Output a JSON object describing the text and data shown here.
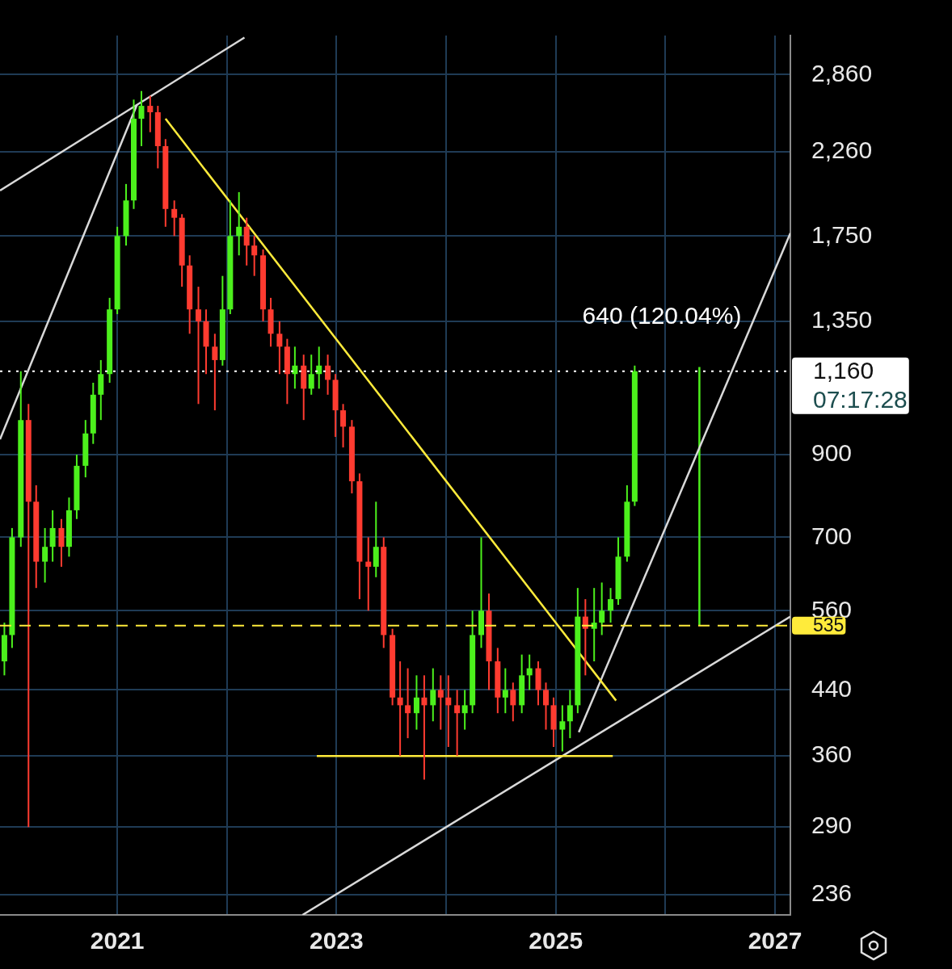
{
  "chart_data": {
    "type": "candlestick",
    "log": "y",
    "grid": true,
    "legend": false,
    "marker": "none",
    "xlim": [
      2019.93,
      2027.14
    ],
    "xticks": [
      2021,
      {
        "value": 2022,
        "label": null
      },
      2023,
      {
        "value": 2024,
        "label": null
      },
      2025,
      {
        "value": 2026,
        "label": null
      },
      2027
    ],
    "ylim": [
      222,
      3220
    ],
    "yticks": [
      {
        "value": 2860,
        "label": "2,860"
      },
      {
        "value": 2260,
        "label": "2,260"
      },
      {
        "value": 1750,
        "label": "1,750"
      },
      {
        "value": 1350,
        "label": "1,350"
      },
      900,
      700,
      560,
      440,
      360,
      290,
      236
    ],
    "ref_lines": [
      {
        "axis": "y",
        "value": 535,
        "label": "535",
        "color": "#ffeb3b",
        "line_style": "dashed"
      },
      {
        "axis": "y",
        "value": 1160,
        "label": "1,160",
        "color": "#ffffff",
        "line_style": "dotted"
      }
    ],
    "annotations": [
      "640 (120.04%)",
      "07:17:28"
    ],
    "series": [
      {
        "x": [
          2019.97,
          2020.04,
          2020.12,
          2020.19,
          2020.26,
          2020.34,
          2020.41,
          2020.49,
          2020.56,
          2020.63,
          2020.71,
          2020.78,
          2020.85,
          2020.93,
          2021.0,
          2021.08,
          2021.15,
          2021.22,
          2021.3,
          2021.37,
          2021.44,
          2021.52,
          2021.59,
          2021.66,
          2021.74,
          2021.81,
          2021.89,
          2021.96,
          2022.03,
          2022.11,
          2022.18,
          2022.25,
          2022.33,
          2022.4,
          2022.48,
          2022.55,
          2022.62,
          2022.7,
          2022.77,
          2022.84,
          2022.92,
          2022.99,
          2023.06,
          2023.14,
          2023.21,
          2023.29,
          2023.36,
          2023.43,
          2023.51,
          2023.58,
          2023.65,
          2023.73,
          2023.8,
          2023.88,
          2023.95,
          2024.02,
          2024.1,
          2024.17,
          2024.24,
          2024.32,
          2024.39,
          2024.47,
          2024.54,
          2024.61,
          2024.69,
          2024.76,
          2024.84,
          2024.91,
          2024.98,
          2025.06,
          2025.13,
          2025.2,
          2025.27,
          2025.35,
          2025.42,
          2025.5,
          2025.57,
          2025.65,
          2025.72
        ],
        "ohlc": [
          [
            480,
            540,
            460,
            520
          ],
          [
            520,
            720,
            500,
            700
          ],
          [
            700,
            1160,
            680,
            1000
          ],
          [
            1000,
            1050,
            290,
            780
          ],
          [
            780,
            820,
            600,
            650
          ],
          [
            650,
            720,
            610,
            680
          ],
          [
            680,
            760,
            650,
            720
          ],
          [
            720,
            740,
            640,
            680
          ],
          [
            680,
            790,
            660,
            760
          ],
          [
            760,
            900,
            740,
            870
          ],
          [
            870,
            1000,
            840,
            960
          ],
          [
            960,
            1120,
            930,
            1080
          ],
          [
            1080,
            1200,
            1000,
            1150
          ],
          [
            1150,
            1450,
            1120,
            1400
          ],
          [
            1400,
            1800,
            1380,
            1750
          ],
          [
            1750,
            2050,
            1700,
            1950
          ],
          [
            1950,
            2650,
            1900,
            2500
          ],
          [
            2500,
            2720,
            2300,
            2600
          ],
          [
            2600,
            2680,
            2400,
            2550
          ],
          [
            2550,
            2600,
            2150,
            2300
          ],
          [
            2300,
            2350,
            1800,
            1900
          ],
          [
            1900,
            1950,
            1750,
            1850
          ],
          [
            1850,
            1870,
            1500,
            1600
          ],
          [
            1600,
            1650,
            1300,
            1400
          ],
          [
            1400,
            1500,
            1050,
            1350
          ],
          [
            1350,
            1400,
            1150,
            1250
          ],
          [
            1250,
            1300,
            1030,
            1200
          ],
          [
            1200,
            1550,
            1180,
            1400
          ],
          [
            1400,
            1950,
            1380,
            1750
          ],
          [
            1750,
            2000,
            1650,
            1800
          ],
          [
            1800,
            1850,
            1600,
            1700
          ],
          [
            1700,
            1750,
            1550,
            1650
          ],
          [
            1650,
            1680,
            1350,
            1400
          ],
          [
            1400,
            1450,
            1250,
            1300
          ],
          [
            1300,
            1350,
            1150,
            1250
          ],
          [
            1250,
            1280,
            1050,
            1150
          ],
          [
            1150,
            1250,
            1100,
            1180
          ],
          [
            1180,
            1220,
            1000,
            1100
          ],
          [
            1100,
            1220,
            1080,
            1150
          ],
          [
            1150,
            1250,
            1100,
            1180
          ],
          [
            1180,
            1220,
            1080,
            1130
          ],
          [
            1130,
            1150,
            950,
            1030
          ],
          [
            1030,
            1050,
            920,
            980
          ],
          [
            980,
            1000,
            800,
            830
          ],
          [
            830,
            850,
            580,
            650
          ],
          [
            650,
            700,
            560,
            640
          ],
          [
            640,
            780,
            620,
            680
          ],
          [
            680,
            700,
            500,
            520
          ],
          [
            520,
            530,
            420,
            430
          ],
          [
            430,
            480,
            360,
            420
          ],
          [
            420,
            470,
            380,
            410
          ],
          [
            410,
            460,
            390,
            430
          ],
          [
            430,
            460,
            335,
            420
          ],
          [
            420,
            470,
            400,
            440
          ],
          [
            440,
            460,
            390,
            430
          ],
          [
            430,
            460,
            370,
            420
          ],
          [
            420,
            440,
            360,
            410
          ],
          [
            410,
            440,
            390,
            420
          ],
          [
            420,
            560,
            410,
            520
          ],
          [
            520,
            700,
            500,
            560
          ],
          [
            560,
            590,
            440,
            480
          ],
          [
            480,
            500,
            410,
            430
          ],
          [
            430,
            470,
            410,
            440
          ],
          [
            440,
            450,
            400,
            420
          ],
          [
            420,
            490,
            410,
            460
          ],
          [
            460,
            490,
            440,
            470
          ],
          [
            470,
            480,
            420,
            440
          ],
          [
            440,
            450,
            390,
            420
          ],
          [
            420,
            430,
            370,
            390
          ],
          [
            390,
            420,
            365,
            400
          ],
          [
            400,
            440,
            380,
            420
          ],
          [
            420,
            600,
            410,
            550
          ],
          [
            550,
            580,
            460,
            530
          ],
          [
            530,
            600,
            480,
            540
          ],
          [
            540,
            610,
            520,
            560
          ],
          [
            560,
            600,
            540,
            580
          ],
          [
            580,
            700,
            570,
            660
          ],
          [
            660,
            820,
            650,
            780
          ],
          [
            780,
            1180,
            770,
            1160
          ]
        ],
        "colors": [
          "#4cf01c",
          "#4cf01c",
          "#4cf01c",
          "#ff3b30",
          "#ff3b30",
          "#4cf01c",
          "#4cf01c",
          "#ff3b30",
          "#4cf01c",
          "#4cf01c",
          "#4cf01c",
          "#4cf01c",
          "#4cf01c",
          "#4cf01c",
          "#4cf01c",
          "#4cf01c",
          "#4cf01c",
          "#4cf01c",
          "#ff3b30",
          "#ff3b30",
          "#ff3b30",
          "#ff3b30",
          "#ff3b30",
          "#ff3b30",
          "#ff3b30",
          "#ff3b30",
          "#ff3b30",
          "#4cf01c",
          "#4cf01c",
          "#4cf01c",
          "#ff3b30",
          "#ff3b30",
          "#ff3b30",
          "#ff3b30",
          "#ff3b30",
          "#ff3b30",
          "#4cf01c",
          "#ff3b30",
          "#4cf01c",
          "#4cf01c",
          "#ff3b30",
          "#ff3b30",
          "#ff3b30",
          "#ff3b30",
          "#ff3b30",
          "#ff3b30",
          "#4cf01c",
          "#ff3b30",
          "#ff3b30",
          "#ff3b30",
          "#ff3b30",
          "#4cf01c",
          "#ff3b30",
          "#4cf01c",
          "#ff3b30",
          "#ff3b30",
          "#ff3b30",
          "#4cf01c",
          "#4cf01c",
          "#4cf01c",
          "#ff3b30",
          "#ff3b30",
          "#4cf01c",
          "#ff3b30",
          "#4cf01c",
          "#4cf01c",
          "#ff3b30",
          "#ff3b30",
          "#ff3b30",
          "#4cf01c",
          "#4cf01c",
          "#4cf01c",
          "#ff3b30",
          "#4cf01c",
          "#4cf01c",
          "#4cf01c",
          "#4cf01c",
          "#4cf01c",
          "#4cf01c"
        ]
      },
      {
        "type": "line",
        "color": "#d9d9d9",
        "x": [
          2019.93,
          2022.16
        ],
        "values": [
          2010,
          3200
        ]
      },
      {
        "type": "line",
        "color": "#d9d9d9",
        "x": [
          2019.93,
          2021.18
        ],
        "values": [
          943,
          2610
        ]
      },
      {
        "type": "line",
        "color": "#ffeb3b",
        "x": [
          2021.44,
          2025.55
        ],
        "values": [
          2500,
          426
        ]
      },
      {
        "type": "line",
        "color": "#ffeb3b",
        "x": [
          2022.82,
          2025.52
        ],
        "values": [
          360,
          360
        ]
      },
      {
        "type": "line",
        "color": "#d9d9d9",
        "x": [
          2022.69,
          2027.14
        ],
        "values": [
          222,
          550
        ]
      },
      {
        "type": "line",
        "color": "#d9d9d9",
        "x": [
          2025.21,
          2027.14
        ],
        "values": [
          387,
          1765
        ]
      },
      {
        "type": "line",
        "color": "#4cf01c",
        "x": [
          2026.31,
          2026.31
        ],
        "values": [
          535,
          1175
        ]
      }
    ]
  }
}
